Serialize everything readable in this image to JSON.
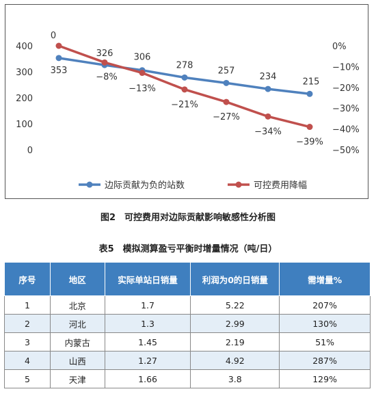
{
  "chart_data": {
    "type": "line",
    "x": [
      1,
      2,
      3,
      4,
      5,
      6,
      7
    ],
    "left_axis": {
      "ticks": [
        "400",
        "300",
        "200",
        "100",
        "0"
      ],
      "ylim": [
        0,
        400
      ]
    },
    "right_axis": {
      "ticks": [
        "0%",
        "−10%",
        "−20%",
        "−30%",
        "−40%",
        "−50%"
      ],
      "ylim": [
        -50,
        0
      ]
    },
    "series": [
      {
        "name": "边际贡献为负的站数",
        "axis": "left",
        "color": "#4f81bd",
        "values": [
          353,
          326,
          306,
          278,
          257,
          234,
          215
        ],
        "labels": [
          "353",
          "326",
          "306",
          "278",
          "257",
          "234",
          "215"
        ]
      },
      {
        "name": "可控费用降幅",
        "axis": "right",
        "color": "#c0504d",
        "values": [
          0,
          -8,
          -13,
          -21,
          -27,
          -34,
          -39
        ],
        "labels": [
          "0",
          "−8%",
          "−13%",
          "−21%",
          "−27%",
          "−34%",
          "−39%"
        ]
      }
    ],
    "legend_position": "bottom",
    "grid": false
  },
  "figure_caption": "图2　可控费用对边际贡献影响敏感性分析图",
  "table": {
    "title": "表5　模拟测算盈亏平衡时增量情况（吨/日）",
    "headers": [
      "序号",
      "地区",
      "实际单站日销量",
      "利润为0的日销量",
      "需增量%"
    ],
    "rows": [
      [
        "1",
        "北京",
        "1.7",
        "5.22",
        "207%"
      ],
      [
        "2",
        "河北",
        "1.3",
        "2.99",
        "130%"
      ],
      [
        "3",
        "内蒙古",
        "1.45",
        "2.19",
        "51%"
      ],
      [
        "4",
        "山西",
        "1.27",
        "4.92",
        "287%"
      ],
      [
        "5",
        "天津",
        "1.66",
        "3.8",
        "129%"
      ]
    ]
  }
}
